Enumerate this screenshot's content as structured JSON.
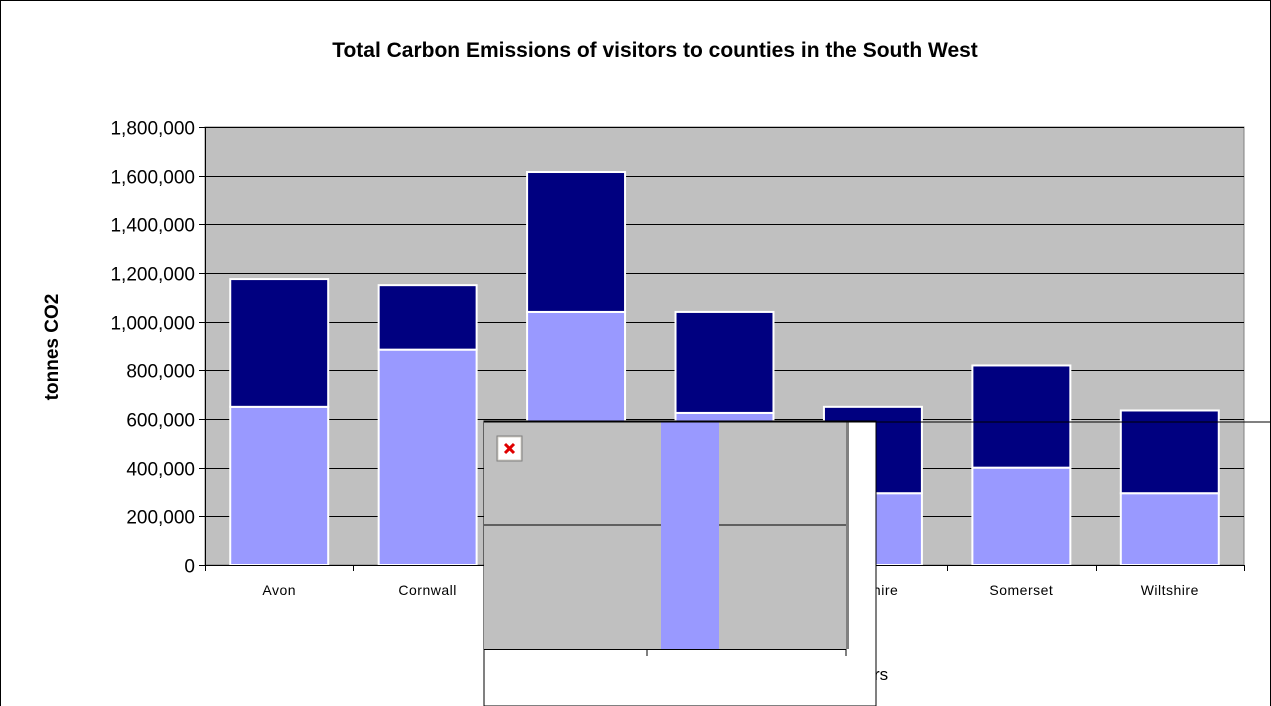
{
  "chart_data": {
    "type": "bar",
    "stacked": true,
    "title": "Total Carbon Emissions of visitors to counties in the South West",
    "ylabel": "tonnes CO2",
    "xlabel": "",
    "xlabel_visible_fragment": "itors",
    "ylim": [
      0,
      1800000
    ],
    "yticks": [
      0,
      200000,
      400000,
      600000,
      800000,
      1000000,
      1200000,
      1400000,
      1600000,
      1800000
    ],
    "ytick_labels": [
      "0",
      "200,000",
      "400,000",
      "600,000",
      "800,000",
      "1,000,000",
      "1,200,000",
      "1,400,000",
      "1,600,000",
      "1,800,000"
    ],
    "grid": true,
    "legend": "none",
    "categories": [
      "Avon",
      "Cornwall",
      "",
      "",
      "tershire",
      "Somerset",
      "Wiltshire"
    ],
    "series": [
      {
        "color": "#9999ff",
        "values": [
          650000,
          885000,
          1040000,
          625000,
          295000,
          400000,
          295000
        ]
      },
      {
        "color": "#000080",
        "values": [
          525000,
          265000,
          575000,
          415000,
          355000,
          420000,
          340000
        ]
      }
    ],
    "colors": {
      "plot_background": "#c0c0c0",
      "light_series": "#9999ff",
      "dark_series": "#000080"
    },
    "overlay_popup": {
      "broken_image_icon": "broken-image-icon",
      "bar_color": "#9999ff",
      "background": "#c0c0c0"
    }
  }
}
